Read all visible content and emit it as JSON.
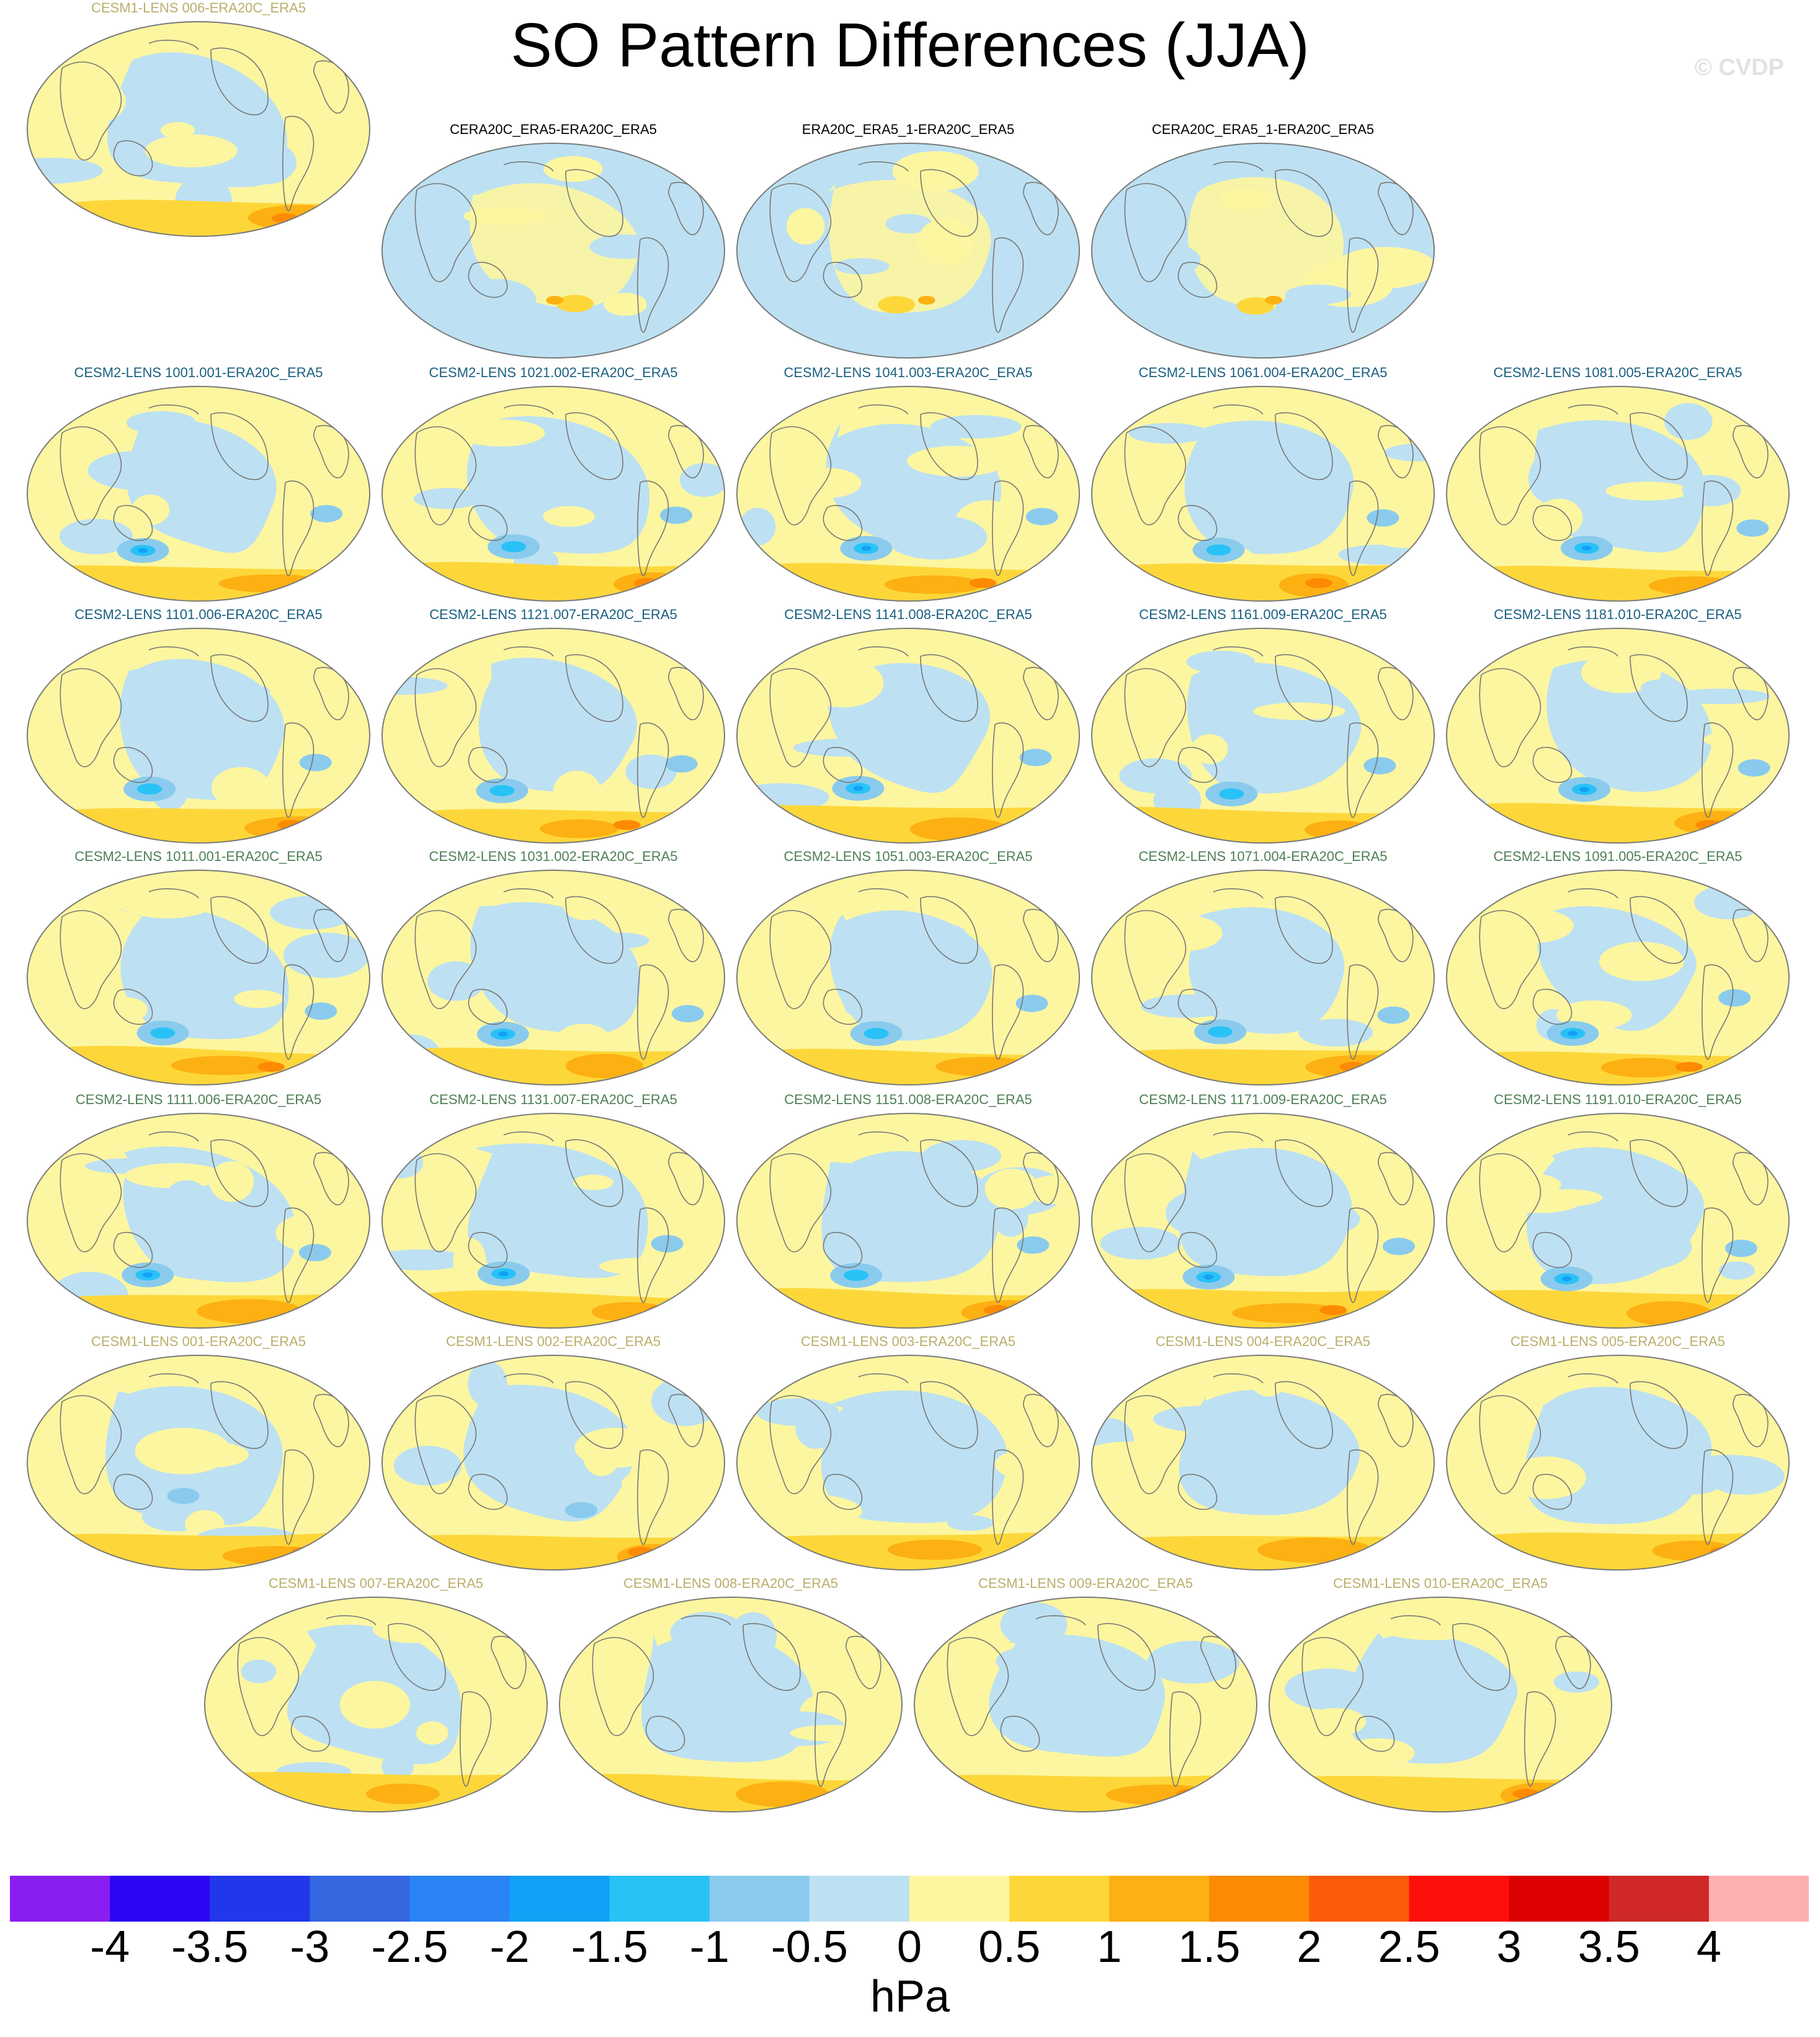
{
  "title": "SO Pattern Differences (JJA)",
  "watermark": "© CVDP",
  "chart_data": {
    "type": "heatmap",
    "title": "SO Pattern Differences (JJA)",
    "projection": "global map panels",
    "colorbar": {
      "units": "hPa",
      "levels": [
        -4,
        -3.5,
        -3,
        -2.5,
        -2,
        -1.5,
        -1,
        -0.5,
        0,
        0.5,
        1,
        1.5,
        2,
        2.5,
        3,
        3.5,
        4
      ],
      "tick_labels": [
        "-4",
        "-3.5",
        "-3",
        "-2.5",
        "-2",
        "-1.5",
        "-1",
        "-0.5",
        "0",
        "0.5",
        "1",
        "1.5",
        "2",
        "2.5",
        "3",
        "3.5",
        "4"
      ],
      "colors": [
        "#8a1ef0",
        "#2a06f5",
        "#2237ea",
        "#3467e0",
        "#2b84f5",
        "#13a0f7",
        "#29c2f7",
        "#8acbed",
        "#bde1f2",
        "#fdf6a0",
        "#fdd73a",
        "#fdb012",
        "#fd8a03",
        "#fb5a08",
        "#fd0f0a",
        "#dc0000",
        "#d02828",
        "#fdb0b0"
      ]
    },
    "panels": [
      {
        "label": "CERA20C_ERA5-ERA20C_ERA5",
        "group": "obs",
        "pattern": 0
      },
      {
        "label": "ERA20C_ERA5_1-ERA20C_ERA5",
        "group": "obs",
        "pattern": 1
      },
      {
        "label": "CERA20C_ERA5_1-ERA20C_ERA5",
        "group": "obs",
        "pattern": 2
      },
      {
        "label": "CESM2-LENS 1001.001-ERA20C_ERA5",
        "group": "c2a",
        "pattern": 3
      },
      {
        "label": "CESM2-LENS 1021.002-ERA20C_ERA5",
        "group": "c2a",
        "pattern": 4
      },
      {
        "label": "CESM2-LENS 1041.003-ERA20C_ERA5",
        "group": "c2a",
        "pattern": 5
      },
      {
        "label": "CESM2-LENS 1061.004-ERA20C_ERA5",
        "group": "c2a",
        "pattern": 6
      },
      {
        "label": "CESM2-LENS 1081.005-ERA20C_ERA5",
        "group": "c2a",
        "pattern": 7
      },
      {
        "label": "CESM2-LENS 1101.006-ERA20C_ERA5",
        "group": "c2a",
        "pattern": 8
      },
      {
        "label": "CESM2-LENS 1121.007-ERA20C_ERA5",
        "group": "c2a",
        "pattern": 9
      },
      {
        "label": "CESM2-LENS 1141.008-ERA20C_ERA5",
        "group": "c2a",
        "pattern": 10
      },
      {
        "label": "CESM2-LENS 1161.009-ERA20C_ERA5",
        "group": "c2a",
        "pattern": 11
      },
      {
        "label": "CESM2-LENS 1181.010-ERA20C_ERA5",
        "group": "c2a",
        "pattern": 12
      },
      {
        "label": "CESM2-LENS 1011.001-ERA20C_ERA5",
        "group": "c2b",
        "pattern": 13
      },
      {
        "label": "CESM2-LENS 1031.002-ERA20C_ERA5",
        "group": "c2b",
        "pattern": 14
      },
      {
        "label": "CESM2-LENS 1051.003-ERA20C_ERA5",
        "group": "c2b",
        "pattern": 15
      },
      {
        "label": "CESM2-LENS 1071.004-ERA20C_ERA5",
        "group": "c2b",
        "pattern": 16
      },
      {
        "label": "CESM2-LENS 1091.005-ERA20C_ERA5",
        "group": "c2b",
        "pattern": 17
      },
      {
        "label": "CESM2-LENS 1111.006-ERA20C_ERA5",
        "group": "c2b",
        "pattern": 18
      },
      {
        "label": "CESM2-LENS 1131.007-ERA20C_ERA5",
        "group": "c2b",
        "pattern": 19
      },
      {
        "label": "CESM2-LENS 1151.008-ERA20C_ERA5",
        "group": "c2b",
        "pattern": 20
      },
      {
        "label": "CESM2-LENS 1171.009-ERA20C_ERA5",
        "group": "c2b",
        "pattern": 21
      },
      {
        "label": "CESM2-LENS 1191.010-ERA20C_ERA5",
        "group": "c2b",
        "pattern": 22
      },
      {
        "label": "CESM1-LENS 001-ERA20C_ERA5",
        "group": "c1",
        "pattern": 23
      },
      {
        "label": "CESM1-LENS 002-ERA20C_ERA5",
        "group": "c1",
        "pattern": 24
      },
      {
        "label": "CESM1-LENS 003-ERA20C_ERA5",
        "group": "c1",
        "pattern": 25
      },
      {
        "label": "CESM1-LENS 004-ERA20C_ERA5",
        "group": "c1",
        "pattern": 26
      },
      {
        "label": "CESM1-LENS 005-ERA20C_ERA5",
        "group": "c1",
        "pattern": 27
      },
      {
        "label": "CESM1-LENS 006-ERA20C_ERA5",
        "group": "c1",
        "pattern": 28
      },
      {
        "label": "CESM1-LENS 007-ERA20C_ERA5",
        "group": "c1",
        "pattern": 29
      },
      {
        "label": "CESM1-LENS 008-ERA20C_ERA5",
        "group": "c1",
        "pattern": 30
      },
      {
        "label": "CESM1-LENS 009-ERA20C_ERA5",
        "group": "c1",
        "pattern": 31
      },
      {
        "label": "CESM1-LENS 010-ERA20C_ERA5",
        "group": "c1",
        "pattern": 32
      }
    ]
  }
}
